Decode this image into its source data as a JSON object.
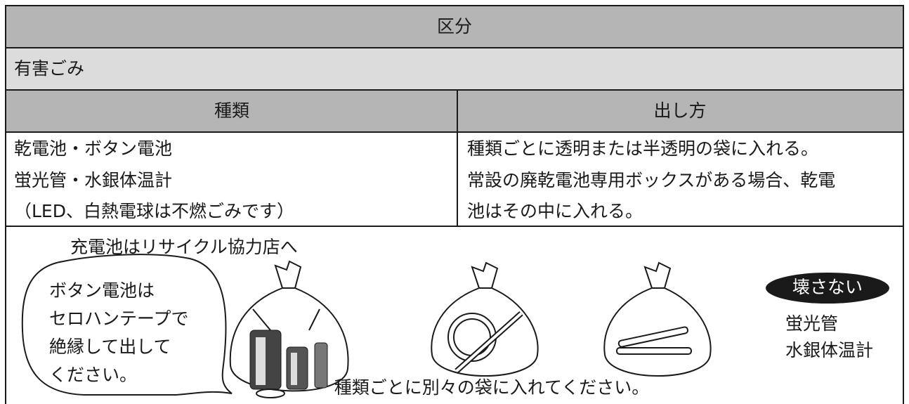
{
  "table": {
    "header": "区分",
    "category": "有害ごみ",
    "columns": [
      "種類",
      "出し方"
    ],
    "rows": [
      [
        [
          "乾電池・ボタン電池",
          "蛍光管・水銀体温計",
          "（LED、白熱電球は不燃ごみです）"
        ],
        [
          "種類ごとに透明または半透明の袋に入れる。",
          "常設の廃乾電池専用ボックスがある場合、乾電",
          "池はその中に入れる。"
        ]
      ]
    ]
  },
  "illustration": {
    "note_top": "充電池はリサイクル協力店へ",
    "bubble": [
      "ボタン電池は",
      "セロハンテープで",
      "絶縁して出して",
      "ください。"
    ],
    "badge": "壊さない",
    "badge_items": [
      "蛍光管",
      "水銀体温計"
    ],
    "caption": "種類ごとに別々の袋に入れてください。"
  }
}
